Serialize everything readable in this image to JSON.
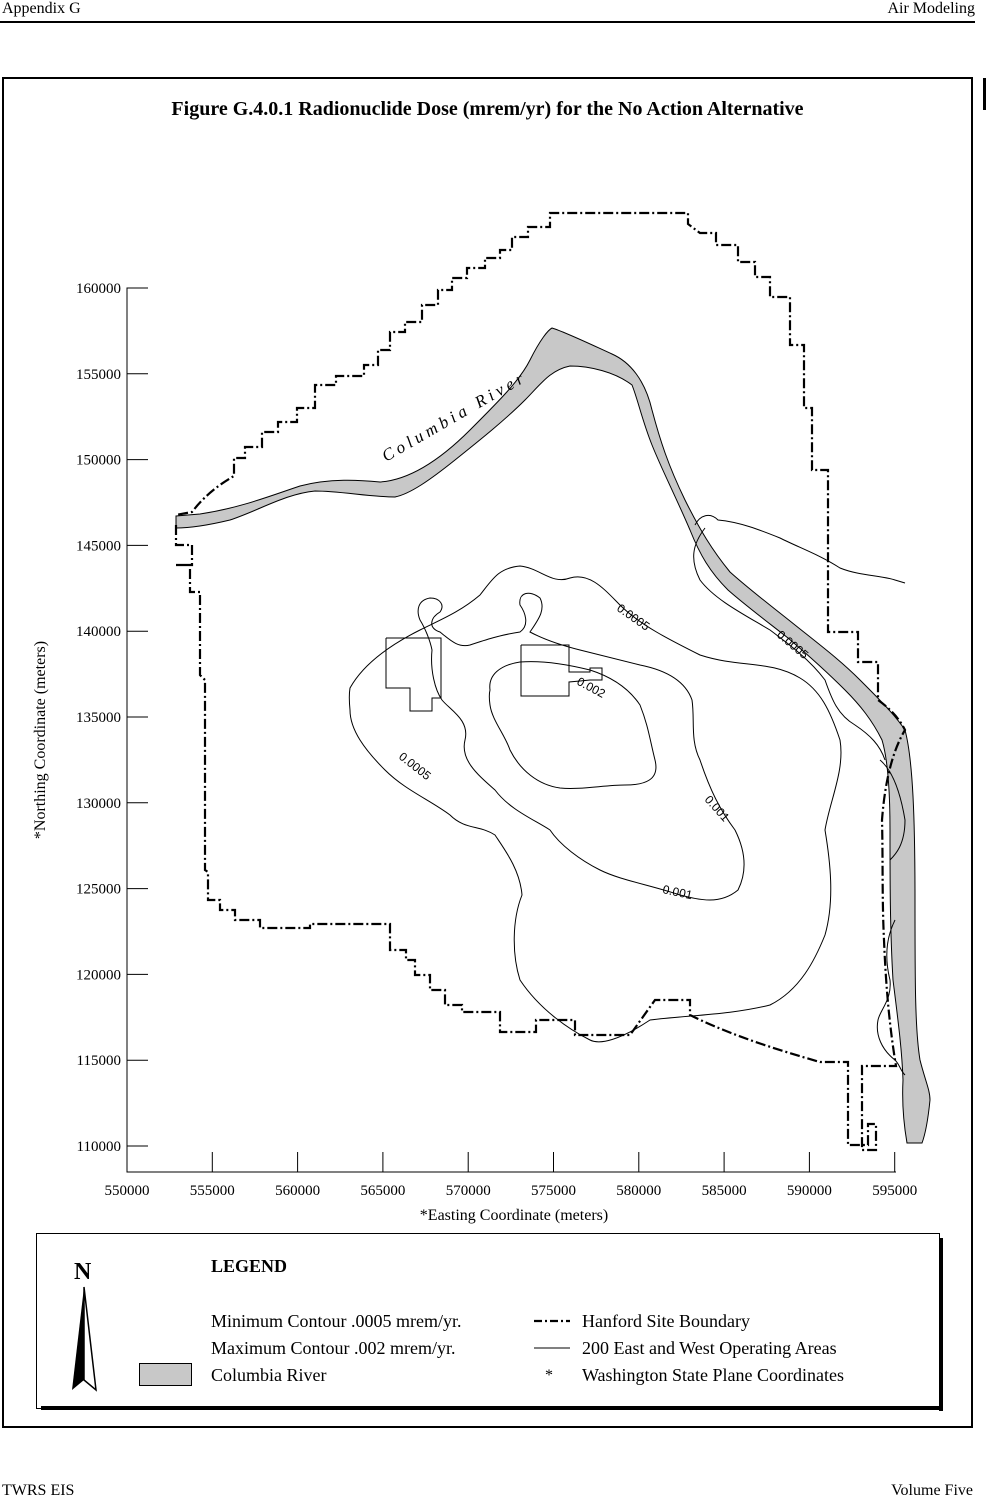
{
  "header": {
    "left": "Appendix G",
    "right": "Air Modeling"
  },
  "figure": {
    "title": "Figure G.4.0.1  Radionuclide Dose (mrem/yr) for the No Action Alternative"
  },
  "axes": {
    "ylabel": "*Northing Coordinate (meters)",
    "xlabel": "*Easting Coordinate (meters)",
    "x_ticks": [
      "550000",
      "555000",
      "560000",
      "565000",
      "570000",
      "575000",
      "580000",
      "585000",
      "590000",
      "595000"
    ],
    "y_ticks": [
      "160000",
      "155000",
      "150000",
      "145000",
      "140000",
      "135000",
      "130000",
      "125000",
      "120000",
      "115000",
      "110000"
    ]
  },
  "map": {
    "river_label": "Columbia River",
    "contour_labels": [
      "0.0005",
      "0.0005",
      "0.0005",
      "0.002",
      "0.001",
      "0.001"
    ],
    "colors": {
      "river": "#c8c8c8",
      "line": "#000000"
    }
  },
  "legend": {
    "title": "LEGEND",
    "north": "N",
    "min_contour": "Minimum Contour .0005 mrem/yr.",
    "max_contour": "Maximum Contour .002 mrem/yr.",
    "river": "Columbia River",
    "boundary": "Hanford Site Boundary",
    "operating": "200 East and West Operating Areas",
    "star": "*",
    "coords": "Washington State Plane Coordinates"
  },
  "footer": {
    "left": "TWRS EIS",
    "right": "Volume Five"
  }
}
